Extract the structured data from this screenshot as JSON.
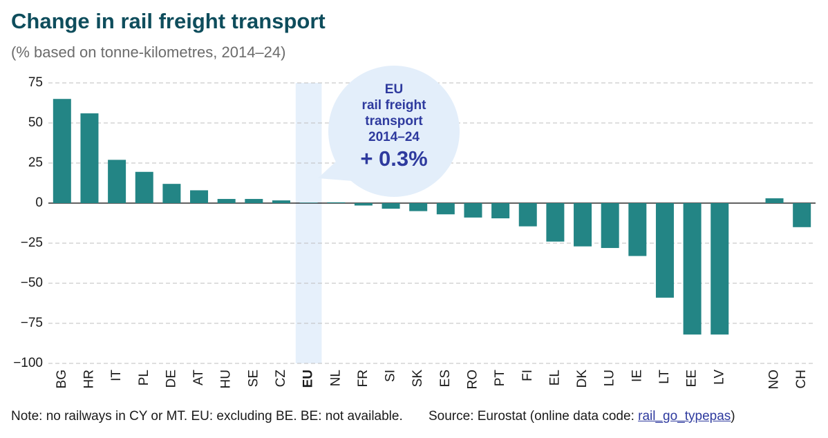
{
  "chart_data": {
    "type": "bar",
    "title": "Change in rail freight transport",
    "subtitle": "(% based on tonne-kilometres, 2014–24)",
    "categories": [
      "BG",
      "HR",
      "IT",
      "PL",
      "DE",
      "AT",
      "HU",
      "SE",
      "CZ",
      "EU",
      "NL",
      "FR",
      "SI",
      "SK",
      "ES",
      "RO",
      "PT",
      "FI",
      "EL",
      "DK",
      "LU",
      "IE",
      "LT",
      "EE",
      "LV",
      null,
      "NO",
      "CH"
    ],
    "values": [
      65,
      56,
      27,
      19.5,
      12,
      8,
      2.6,
      2.6,
      1.7,
      0.3,
      0.5,
      -1.5,
      -3.5,
      -5,
      -7,
      -9,
      -9.5,
      -14.5,
      -24,
      -27,
      -28,
      -33,
      -59,
      -82,
      -82,
      null,
      3,
      -15
    ],
    "color": "#238585",
    "highlight": "EU",
    "highlight_color": "#e6f0fb",
    "highlight_label_color": "#2e3a9e",
    "ylim": [
      -100,
      75
    ],
    "yticks": [
      {
        "value": -100,
        "label": "−100"
      },
      {
        "value": -75,
        "label": "−75"
      },
      {
        "value": -50,
        "label": "−50"
      },
      {
        "value": -25,
        "label": "−25"
      },
      0,
      25,
      50,
      75
    ],
    "grid": true,
    "annotation": {
      "lines": [
        "EU",
        "rail freight",
        "transport",
        "2014–24"
      ],
      "value_label": "+ 0.3%"
    }
  },
  "note": "Note: no railways in CY or MT. EU: excluding BE. BE: not available.",
  "source": {
    "prefix": "Source: Eurostat (online data code: ",
    "link": "rail_go_typepas",
    "suffix": ")"
  }
}
